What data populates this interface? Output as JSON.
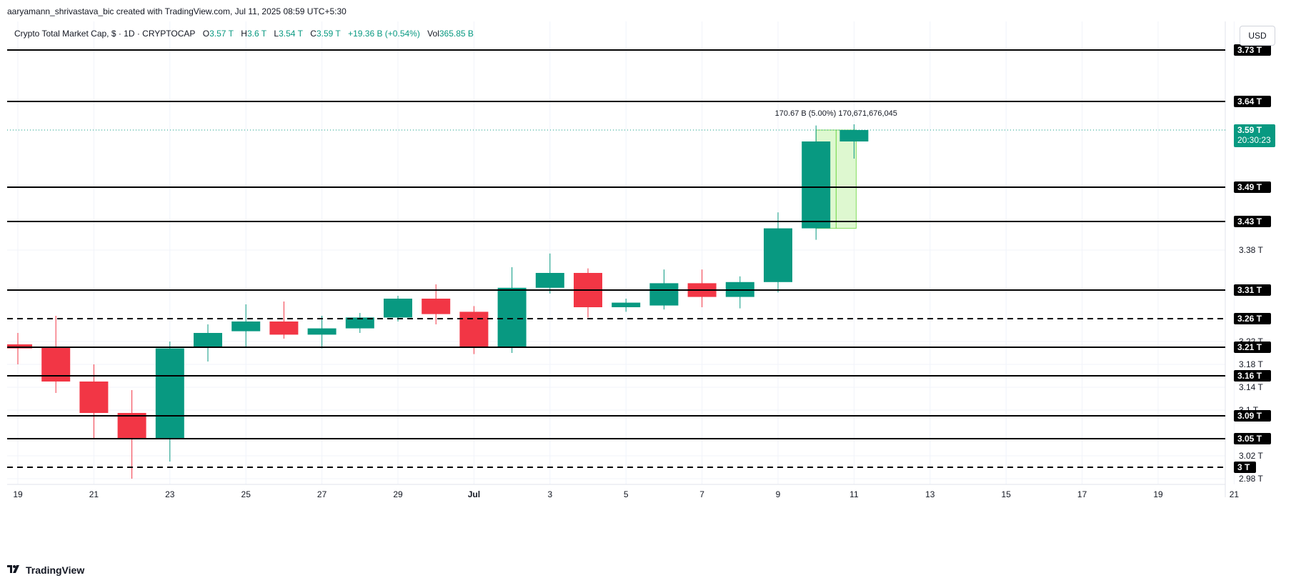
{
  "header": {
    "credit": "aaryamann_shrivastava_bic created with TradingView.com, Jul 11, 2025 08:59 UTC+5:30"
  },
  "legend": {
    "symbol": "Crypto Total Market Cap, $ · 1D · CRYPTOCAP",
    "o_label": "O",
    "o_value": "3.57 T",
    "h_label": "H",
    "h_value": "3.6 T",
    "l_label": "L",
    "l_value": "3.54 T",
    "c_label": "C",
    "c_value": "3.59 T",
    "change": "+19.36 B (+0.54%)",
    "vol_label": "Vol",
    "vol_value": "365.85 B"
  },
  "currency_button": "USD",
  "footer": {
    "brand": "TradingView",
    "logo_icon": "tradingview-logo-icon"
  },
  "colors": {
    "up": "#089981",
    "down": "#f23645",
    "measure_fill": "#d9f7c8",
    "measure_stroke": "#6cd63f",
    "level": "#000000",
    "price_badge": "#089981"
  },
  "chart_data": {
    "type": "candlestick",
    "title": "Crypto Total Market Cap, $ · 1D · CRYPTOCAP",
    "ylim": [
      2.97,
      3.78
    ],
    "y_unit": "T",
    "x_tick_labels": [
      {
        "i": 0,
        "label": "19"
      },
      {
        "i": 2,
        "label": "21"
      },
      {
        "i": 4,
        "label": "23"
      },
      {
        "i": 6,
        "label": "25"
      },
      {
        "i": 8,
        "label": "27"
      },
      {
        "i": 10,
        "label": "29"
      },
      {
        "i": 12,
        "label": "Jul"
      },
      {
        "i": 14,
        "label": "3"
      },
      {
        "i": 16,
        "label": "5"
      },
      {
        "i": 18,
        "label": "7"
      },
      {
        "i": 20,
        "label": "9"
      },
      {
        "i": 22,
        "label": "11"
      },
      {
        "i": 24,
        "label": "13"
      },
      {
        "i": 26,
        "label": "15"
      },
      {
        "i": 28,
        "label": "17"
      },
      {
        "i": 30,
        "label": "19"
      },
      {
        "i": 32,
        "label": "21"
      }
    ],
    "candles": [
      {
        "date": "Jun 19",
        "open": 3.215,
        "high": 3.235,
        "low": 3.18,
        "close": 3.208
      },
      {
        "date": "Jun 20",
        "open": 3.21,
        "high": 3.265,
        "low": 3.13,
        "close": 3.15
      },
      {
        "date": "Jun 21",
        "open": 3.15,
        "high": 3.18,
        "low": 3.05,
        "close": 3.095
      },
      {
        "date": "Jun 22",
        "open": 3.095,
        "high": 3.135,
        "low": 2.98,
        "close": 3.05
      },
      {
        "date": "Jun 23",
        "open": 3.05,
        "high": 3.22,
        "low": 3.01,
        "close": 3.208
      },
      {
        "date": "Jun 24",
        "open": 3.21,
        "high": 3.25,
        "low": 3.185,
        "close": 3.235
      },
      {
        "date": "Jun 25",
        "open": 3.238,
        "high": 3.285,
        "low": 3.21,
        "close": 3.255
      },
      {
        "date": "Jun 26",
        "open": 3.255,
        "high": 3.29,
        "low": 3.225,
        "close": 3.232
      },
      {
        "date": "Jun 27",
        "open": 3.232,
        "high": 3.265,
        "low": 3.208,
        "close": 3.243
      },
      {
        "date": "Jun 28",
        "open": 3.243,
        "high": 3.27,
        "low": 3.235,
        "close": 3.262
      },
      {
        "date": "Jun 29",
        "open": 3.262,
        "high": 3.3,
        "low": 3.255,
        "close": 3.295
      },
      {
        "date": "Jun 30",
        "open": 3.295,
        "high": 3.32,
        "low": 3.25,
        "close": 3.268
      },
      {
        "date": "Jul 1",
        "open": 3.272,
        "high": 3.282,
        "low": 3.198,
        "close": 3.21
      },
      {
        "date": "Jul 2",
        "open": 3.21,
        "high": 3.35,
        "low": 3.2,
        "close": 3.314
      },
      {
        "date": "Jul 3",
        "open": 3.314,
        "high": 3.374,
        "low": 3.304,
        "close": 3.34
      },
      {
        "date": "Jul 4",
        "open": 3.34,
        "high": 3.348,
        "low": 3.262,
        "close": 3.28
      },
      {
        "date": "Jul 5",
        "open": 3.28,
        "high": 3.295,
        "low": 3.272,
        "close": 3.288
      },
      {
        "date": "Jul 6",
        "open": 3.283,
        "high": 3.346,
        "low": 3.276,
        "close": 3.322
      },
      {
        "date": "Jul 7",
        "open": 3.322,
        "high": 3.346,
        "low": 3.28,
        "close": 3.298
      },
      {
        "date": "Jul 8",
        "open": 3.298,
        "high": 3.334,
        "low": 3.278,
        "close": 3.324
      },
      {
        "date": "Jul 9",
        "open": 3.324,
        "high": 3.446,
        "low": 3.306,
        "close": 3.418
      },
      {
        "date": "Jul 10",
        "open": 3.418,
        "high": 3.598,
        "low": 3.398,
        "close": 3.57
      },
      {
        "date": "Jul 11",
        "open": 3.57,
        "high": 3.6,
        "low": 3.54,
        "close": 3.59
      }
    ],
    "levels": [
      {
        "value": 3.73,
        "label": "3.73 T",
        "style": "solid"
      },
      {
        "value": 3.64,
        "label": "3.64 T",
        "style": "solid"
      },
      {
        "value": 3.49,
        "label": "3.49 T",
        "style": "solid"
      },
      {
        "value": 3.43,
        "label": "3.43 T",
        "style": "solid"
      },
      {
        "value": 3.31,
        "label": "3.31 T",
        "style": "solid"
      },
      {
        "value": 3.26,
        "label": "3.26 T",
        "style": "dashed"
      },
      {
        "value": 3.21,
        "label": "3.21 T",
        "style": "solid"
      },
      {
        "value": 3.16,
        "label": "3.16 T",
        "style": "solid"
      },
      {
        "value": 3.09,
        "label": "3.09 T",
        "style": "solid"
      },
      {
        "value": 3.05,
        "label": "3.05 T",
        "style": "solid"
      },
      {
        "value": 3.0,
        "label": "3 T",
        "style": "dashed"
      }
    ],
    "y_tick_labels": [
      {
        "value": 3.38,
        "label": "3.38 T"
      },
      {
        "value": 3.22,
        "label": "3.22 T"
      },
      {
        "value": 3.18,
        "label": "3.18 T"
      },
      {
        "value": 3.14,
        "label": "3.14 T"
      },
      {
        "value": 3.1,
        "label": "3.1 T"
      },
      {
        "value": 3.02,
        "label": "3.02 T"
      },
      {
        "value": 2.98,
        "label": "2.98 T"
      }
    ],
    "last_price": {
      "value": 3.59,
      "label": "3.59 T",
      "countdown": "20:30:23"
    },
    "measure": {
      "from_index": 21,
      "to_index": 22,
      "low": 3.418,
      "high": 3.59,
      "text": "170.67 B (5.00%) 170,671,676,045"
    }
  }
}
